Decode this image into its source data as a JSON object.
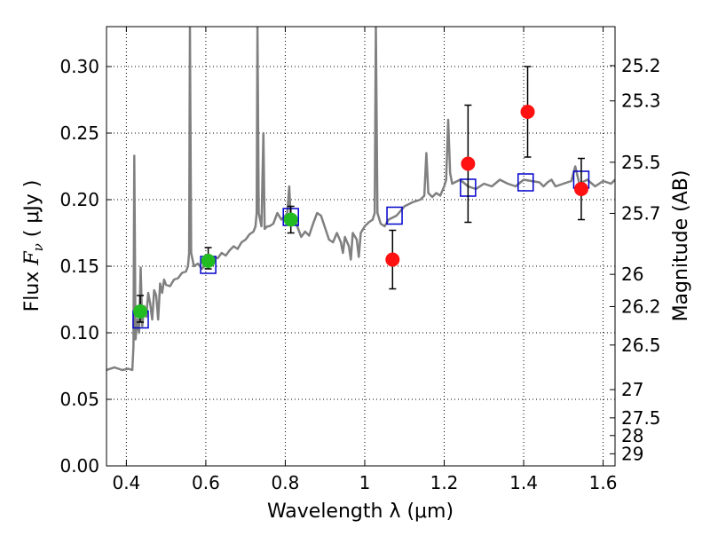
{
  "chart_data": {
    "type": "scatter",
    "xlabel": "Wavelength  λ (μm)",
    "ylabel": "Flux  F_ν  ( μJy )",
    "y2label": "Magnitude (AB)",
    "xlim": [
      0.35,
      1.63
    ],
    "ylim": [
      0.0,
      0.33
    ],
    "grid": true,
    "x_ticks": [
      0.4,
      0.6,
      0.8,
      1.0,
      1.2,
      1.4,
      1.6
    ],
    "x_tick_labels": [
      "0.4",
      "0.6",
      "0.8",
      "1",
      "1.2",
      "1.4",
      "1.6"
    ],
    "y_ticks": [
      0.0,
      0.05,
      0.1,
      0.15,
      0.2,
      0.25,
      0.3
    ],
    "y_tick_labels": [
      "0.00",
      "0.05",
      "0.10",
      "0.15",
      "0.20",
      "0.25",
      "0.30"
    ],
    "mag_ticks": [
      {
        "label": "25.2",
        "flux": 0.3007
      },
      {
        "label": "25.3",
        "flux": 0.2742
      },
      {
        "label": "25.5",
        "flux": 0.2281
      },
      {
        "label": "25.7",
        "flux": 0.1897
      },
      {
        "label": "26",
        "flux": 0.1439
      },
      {
        "label": "26.2",
        "flux": 0.1197
      },
      {
        "label": "26.5",
        "flux": 0.0908
      },
      {
        "label": "27",
        "flux": 0.0573
      },
      {
        "label": "27.5",
        "flux": 0.0361
      },
      {
        "label": "28",
        "flux": 0.0228
      },
      {
        "label": "29",
        "flux": 0.0091
      }
    ],
    "template_spectrum": {
      "color": "#808080",
      "points": [
        [
          0.35,
          0.072
        ],
        [
          0.37,
          0.074
        ],
        [
          0.39,
          0.072
        ],
        [
          0.405,
          0.073
        ],
        [
          0.415,
          0.072
        ],
        [
          0.418,
          0.09
        ],
        [
          0.42,
          0.233
        ],
        [
          0.423,
          0.095
        ],
        [
          0.428,
          0.11
        ],
        [
          0.432,
          0.1
        ],
        [
          0.436,
          0.149
        ],
        [
          0.44,
          0.105
        ],
        [
          0.445,
          0.12
        ],
        [
          0.45,
          0.112
        ],
        [
          0.455,
          0.13
        ],
        [
          0.46,
          0.122
        ],
        [
          0.465,
          0.11
        ],
        [
          0.47,
          0.132
        ],
        [
          0.475,
          0.128
        ],
        [
          0.48,
          0.11
        ],
        [
          0.485,
          0.137
        ],
        [
          0.49,
          0.13
        ],
        [
          0.495,
          0.14
        ],
        [
          0.5,
          0.136
        ],
        [
          0.51,
          0.135
        ],
        [
          0.52,
          0.14
        ],
        [
          0.53,
          0.141
        ],
        [
          0.54,
          0.145
        ],
        [
          0.55,
          0.146
        ],
        [
          0.555,
          0.15
        ],
        [
          0.558,
          0.16
        ],
        [
          0.56,
          0.33
        ],
        [
          0.563,
          0.16
        ],
        [
          0.57,
          0.15
        ],
        [
          0.58,
          0.152
        ],
        [
          0.59,
          0.148
        ],
        [
          0.6,
          0.151
        ],
        [
          0.61,
          0.155
        ],
        [
          0.62,
          0.157
        ],
        [
          0.63,
          0.156
        ],
        [
          0.64,
          0.16
        ],
        [
          0.65,
          0.158
        ],
        [
          0.66,
          0.162
        ],
        [
          0.67,
          0.165
        ],
        [
          0.68,
          0.163
        ],
        [
          0.69,
          0.168
        ],
        [
          0.7,
          0.17
        ],
        [
          0.71,
          0.174
        ],
        [
          0.72,
          0.176
        ],
        [
          0.725,
          0.18
        ],
        [
          0.728,
          0.19
        ],
        [
          0.73,
          0.33
        ],
        [
          0.733,
          0.19
        ],
        [
          0.74,
          0.18
        ],
        [
          0.745,
          0.25
        ],
        [
          0.748,
          0.178
        ],
        [
          0.755,
          0.18
        ],
        [
          0.76,
          0.18
        ],
        [
          0.77,
          0.182
        ],
        [
          0.78,
          0.19
        ],
        [
          0.79,
          0.185
        ],
        [
          0.8,
          0.188
        ],
        [
          0.805,
          0.19
        ],
        [
          0.81,
          0.21
        ],
        [
          0.813,
          0.19
        ],
        [
          0.82,
          0.187
        ],
        [
          0.83,
          0.18
        ],
        [
          0.84,
          0.172
        ],
        [
          0.85,
          0.176
        ],
        [
          0.86,
          0.173
        ],
        [
          0.87,
          0.182
        ],
        [
          0.88,
          0.19
        ],
        [
          0.89,
          0.188
        ],
        [
          0.9,
          0.179
        ],
        [
          0.91,
          0.17
        ],
        [
          0.92,
          0.168
        ],
        [
          0.93,
          0.175
        ],
        [
          0.94,
          0.168
        ],
        [
          0.945,
          0.16
        ],
        [
          0.95,
          0.172
        ],
        [
          0.96,
          0.165
        ],
        [
          0.965,
          0.155
        ],
        [
          0.97,
          0.175
        ],
        [
          0.98,
          0.17
        ],
        [
          0.985,
          0.157
        ],
        [
          0.99,
          0.175
        ],
        [
          1.0,
          0.18
        ],
        [
          1.01,
          0.183
        ],
        [
          1.02,
          0.185
        ],
        [
          1.025,
          0.19
        ],
        [
          1.028,
          0.33
        ],
        [
          1.032,
          0.19
        ],
        [
          1.04,
          0.182
        ],
        [
          1.05,
          0.18
        ],
        [
          1.06,
          0.185
        ],
        [
          1.08,
          0.188
        ],
        [
          1.1,
          0.195
        ],
        [
          1.12,
          0.198
        ],
        [
          1.14,
          0.2
        ],
        [
          1.15,
          0.203
        ],
        [
          1.155,
          0.235
        ],
        [
          1.16,
          0.205
        ],
        [
          1.17,
          0.202
        ],
        [
          1.18,
          0.205
        ],
        [
          1.19,
          0.203
        ],
        [
          1.2,
          0.21
        ],
        [
          1.205,
          0.215
        ],
        [
          1.21,
          0.26
        ],
        [
          1.215,
          0.22
        ],
        [
          1.22,
          0.212
        ],
        [
          1.24,
          0.215
        ],
        [
          1.26,
          0.21
        ],
        [
          1.28,
          0.208
        ],
        [
          1.3,
          0.212
        ],
        [
          1.32,
          0.21
        ],
        [
          1.34,
          0.215
        ],
        [
          1.36,
          0.212
        ],
        [
          1.38,
          0.21
        ],
        [
          1.4,
          0.215
        ],
        [
          1.42,
          0.214
        ],
        [
          1.44,
          0.213
        ],
        [
          1.45,
          0.21
        ],
        [
          1.46,
          0.213
        ],
        [
          1.47,
          0.215
        ],
        [
          1.48,
          0.21
        ],
        [
          1.5,
          0.212
        ],
        [
          1.52,
          0.214
        ],
        [
          1.53,
          0.225
        ],
        [
          1.54,
          0.212
        ],
        [
          1.56,
          0.215
        ],
        [
          1.58,
          0.21
        ],
        [
          1.6,
          0.214
        ],
        [
          1.62,
          0.212
        ],
        [
          1.63,
          0.215
        ]
      ]
    },
    "model_fluxes": {
      "color": "#0000cc",
      "points": [
        [
          0.436,
          0.11
        ],
        [
          0.606,
          0.151
        ],
        [
          0.814,
          0.187
        ],
        [
          1.075,
          0.188
        ],
        [
          1.26,
          0.209
        ],
        [
          1.405,
          0.213
        ],
        [
          1.545,
          0.215
        ]
      ]
    },
    "green_points": {
      "color": "#22bb22",
      "points": [
        {
          "x": 0.435,
          "y": 0.116,
          "yerr_lo": 0.008,
          "yerr_hi": 0.012
        },
        {
          "x": 0.606,
          "y": 0.154,
          "yerr_lo": 0.006,
          "yerr_hi": 0.01
        },
        {
          "x": 0.814,
          "y": 0.185,
          "yerr_lo": 0.01,
          "yerr_hi": 0.01
        }
      ]
    },
    "red_points": {
      "color": "#ff1111",
      "points": [
        {
          "x": 1.07,
          "y": 0.155,
          "yerr_lo": 0.022,
          "yerr_hi": 0.022
        },
        {
          "x": 1.26,
          "y": 0.227,
          "yerr_lo": 0.044,
          "yerr_hi": 0.044
        },
        {
          "x": 1.41,
          "y": 0.266,
          "yerr_lo": 0.034,
          "yerr_hi": 0.034
        },
        {
          "x": 1.545,
          "y": 0.208,
          "yerr_lo": 0.023,
          "yerr_hi": 0.023
        }
      ]
    }
  }
}
